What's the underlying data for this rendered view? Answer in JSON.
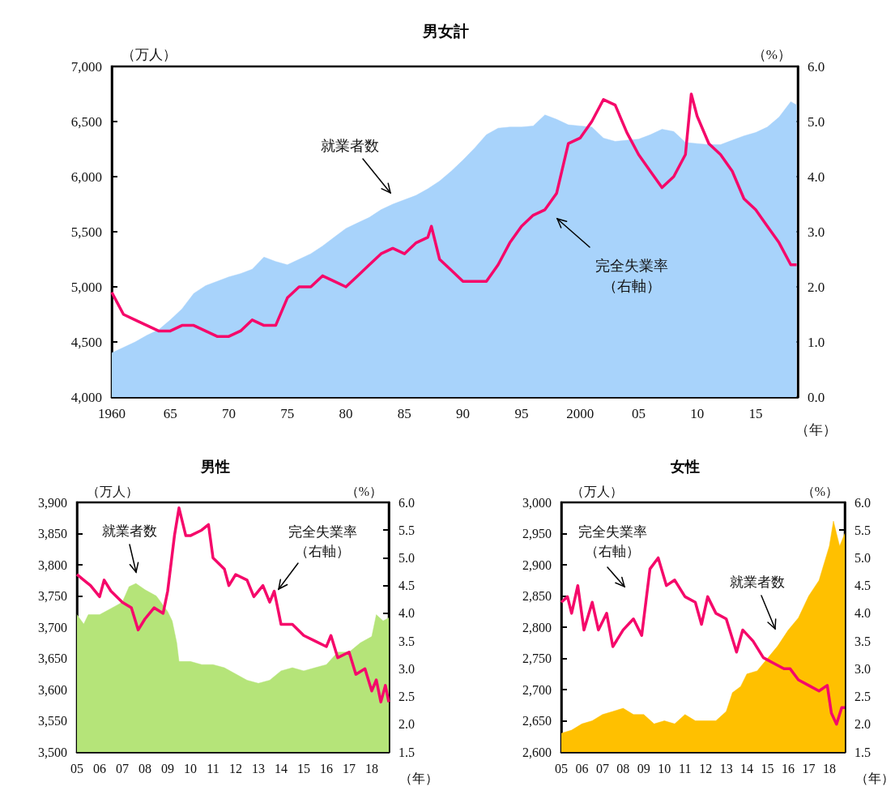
{
  "chart_data": [
    {
      "type": "area",
      "title": "男女計",
      "ylabel": "（万人）",
      "y2label": "（%）",
      "xlabel": "（年）",
      "xlim": [
        1960,
        2018.6
      ],
      "xticks": [
        {
          "value": 1960,
          "label": "1960"
        },
        {
          "value": 1965,
          "label": "65"
        },
        {
          "value": 1970,
          "label": "70"
        },
        {
          "value": 1975,
          "label": "75"
        },
        {
          "value": 1980,
          "label": "80"
        },
        {
          "value": 1985,
          "label": "85"
        },
        {
          "value": 1990,
          "label": "90"
        },
        {
          "value": 1995,
          "label": "95"
        },
        {
          "value": 2000,
          "label": "2000"
        },
        {
          "value": 2005,
          "label": "05"
        },
        {
          "value": 2010,
          "label": "10"
        },
        {
          "value": 2015,
          "label": "15"
        }
      ],
      "ylim": [
        4000,
        7000
      ],
      "yticks": [
        {
          "value": 4000,
          "label": "4,000"
        },
        {
          "value": 4500,
          "label": "4,500"
        },
        {
          "value": 5000,
          "label": "5,000"
        },
        {
          "value": 5500,
          "label": "5,500"
        },
        {
          "value": 6000,
          "label": "6,000"
        },
        {
          "value": 6500,
          "label": "6,500"
        },
        {
          "value": 7000,
          "label": "7,000"
        }
      ],
      "y2lim": [
        0,
        6
      ],
      "y2ticks": [
        {
          "value": 0,
          "label": "0.0"
        },
        {
          "value": 1,
          "label": "1.0"
        },
        {
          "value": 2,
          "label": "2.0"
        },
        {
          "value": 3,
          "label": "3.0"
        },
        {
          "value": 4,
          "label": "4.0"
        },
        {
          "value": 5,
          "label": "5.0"
        },
        {
          "value": 6,
          "label": "6.0"
        }
      ],
      "series": [
        {
          "color": "#a8d3fb",
          "x": [
            1960,
            1961,
            1962,
            1963,
            1964,
            1965,
            1966,
            1967,
            1968,
            1969,
            1970,
            1971,
            1972,
            1973,
            1974,
            1975,
            1976,
            1977,
            1978,
            1979,
            1980,
            1981,
            1982,
            1983,
            1984,
            1985,
            1986,
            1987,
            1988,
            1989,
            1990,
            1991,
            1992,
            1993,
            1994,
            1995,
            1996,
            1997,
            1998,
            1999,
            2000,
            2001,
            2002,
            2003,
            2004,
            2005,
            2006,
            2007,
            2008,
            2009,
            2010,
            2011,
            2012,
            2013,
            2014,
            2015,
            2016,
            2017,
            2018,
            2018.5
          ],
          "values": [
            4400,
            4450,
            4500,
            4560,
            4610,
            4700,
            4800,
            4940,
            5010,
            5050,
            5090,
            5120,
            5160,
            5270,
            5230,
            5200,
            5250,
            5300,
            5370,
            5450,
            5530,
            5580,
            5630,
            5700,
            5750,
            5790,
            5830,
            5890,
            5960,
            6050,
            6150,
            6260,
            6380,
            6440,
            6450,
            6450,
            6460,
            6560,
            6520,
            6470,
            6460,
            6450,
            6350,
            6320,
            6330,
            6340,
            6380,
            6430,
            6410,
            6310,
            6300,
            6290,
            6290,
            6330,
            6370,
            6400,
            6450,
            6540,
            6680,
            6650
          ]
        },
        {
          "type": "line",
          "axis": "y2",
          "color": "#f5086a",
          "x": [
            1960,
            1960.5,
            1961,
            1962,
            1963,
            1964,
            1965,
            1966,
            1967,
            1968,
            1969,
            1970,
            1971,
            1972,
            1973,
            1974,
            1975,
            1976,
            1977,
            1978,
            1979,
            1980,
            1981,
            1982,
            1983,
            1984,
            1985,
            1986,
            1987,
            1987.3,
            1988,
            1989,
            1990,
            1991,
            1992,
            1993,
            1994,
            1995,
            1996,
            1997,
            1998,
            1999,
            2000,
            2001,
            2002,
            2003,
            2004,
            2005,
            2006,
            2007,
            2008,
            2009,
            2009.5,
            2010,
            2011,
            2012,
            2013,
            2014,
            2015,
            2016,
            2017,
            2018,
            2018.5
          ],
          "values": [
            1.9,
            1.7,
            1.5,
            1.4,
            1.3,
            1.2,
            1.2,
            1.3,
            1.3,
            1.2,
            1.1,
            1.1,
            1.2,
            1.4,
            1.3,
            1.3,
            1.8,
            2.0,
            2.0,
            2.2,
            2.1,
            2.0,
            2.2,
            2.4,
            2.6,
            2.7,
            2.6,
            2.8,
            2.9,
            3.1,
            2.5,
            2.3,
            2.1,
            2.1,
            2.1,
            2.4,
            2.8,
            3.1,
            3.3,
            3.4,
            3.7,
            4.6,
            4.7,
            5.0,
            5.4,
            5.3,
            4.8,
            4.4,
            4.1,
            3.8,
            4.0,
            4.4,
            5.5,
            5.1,
            4.6,
            4.4,
            4.1,
            3.6,
            3.4,
            3.1,
            2.8,
            2.4,
            2.4
          ]
        }
      ],
      "annotations": [
        "就業者数",
        "完全失業率（右軸）"
      ]
    },
    {
      "type": "area",
      "title": "男性",
      "ylabel": "（万人）",
      "y2label": "（%）",
      "xlabel": "（年）",
      "xlim": [
        2005,
        2018.75
      ],
      "xticks": [
        {
          "value": 2005,
          "label": "05"
        },
        {
          "value": 2006,
          "label": "06"
        },
        {
          "value": 2007,
          "label": "07"
        },
        {
          "value": 2008,
          "label": "08"
        },
        {
          "value": 2009,
          "label": "09"
        },
        {
          "value": 2010,
          "label": "10"
        },
        {
          "value": 2011,
          "label": "11"
        },
        {
          "value": 2012,
          "label": "12"
        },
        {
          "value": 2013,
          "label": "13"
        },
        {
          "value": 2014,
          "label": "14"
        },
        {
          "value": 2015,
          "label": "15"
        },
        {
          "value": 2016,
          "label": "16"
        },
        {
          "value": 2017,
          "label": "17"
        },
        {
          "value": 2018,
          "label": "18"
        }
      ],
      "ylim": [
        3500,
        3900
      ],
      "yticks": [
        {
          "value": 3500,
          "label": "3,500"
        },
        {
          "value": 3550,
          "label": "3,550"
        },
        {
          "value": 3600,
          "label": "3,600"
        },
        {
          "value": 3650,
          "label": "3,650"
        },
        {
          "value": 3700,
          "label": "3,700"
        },
        {
          "value": 3750,
          "label": "3,750"
        },
        {
          "value": 3800,
          "label": "3,800"
        },
        {
          "value": 3850,
          "label": "3,850"
        },
        {
          "value": 3900,
          "label": "3,900"
        }
      ],
      "y2lim": [
        1.5,
        6
      ],
      "y2ticks": [
        {
          "value": 1.5,
          "label": "1.5"
        },
        {
          "value": 2,
          "label": "2.0"
        },
        {
          "value": 2.5,
          "label": "2.5"
        },
        {
          "value": 3,
          "label": "3.0"
        },
        {
          "value": 3.5,
          "label": "3.5"
        },
        {
          "value": 4,
          "label": "4.0"
        },
        {
          "value": 4.5,
          "label": "4.5"
        },
        {
          "value": 5,
          "label": "5.0"
        },
        {
          "value": 5.5,
          "label": "5.5"
        },
        {
          "value": 6,
          "label": "6.0"
        }
      ],
      "series": [
        {
          "color": "#b5e479",
          "x": [
            2005,
            2005.3,
            2005.5,
            2006,
            2006.5,
            2007,
            2007.3,
            2007.6,
            2008,
            2008.5,
            2009,
            2009.2,
            2009.4,
            2009.5,
            2010,
            2010.5,
            2011,
            2011.5,
            2012,
            2012.5,
            2013,
            2013.5,
            2014,
            2014.5,
            2015,
            2015.5,
            2016,
            2016.5,
            2017,
            2017.5,
            2018,
            2018.2,
            2018.5,
            2018.75
          ],
          "values": [
            3720,
            3705,
            3720,
            3720,
            3730,
            3740,
            3765,
            3770,
            3760,
            3750,
            3725,
            3710,
            3675,
            3645,
            3645,
            3640,
            3640,
            3635,
            3625,
            3615,
            3610,
            3615,
            3630,
            3635,
            3630,
            3635,
            3640,
            3660,
            3660,
            3675,
            3685,
            3720,
            3710,
            3715
          ]
        },
        {
          "type": "line",
          "axis": "y2",
          "color": "#f5086a",
          "x": [
            2005,
            2005.3,
            2005.6,
            2006,
            2006.2,
            2006.5,
            2007,
            2007.4,
            2007.7,
            2008,
            2008.4,
            2008.8,
            2009,
            2009.3,
            2009.5,
            2009.8,
            2010,
            2010.5,
            2010.8,
            2011,
            2011.5,
            2011.7,
            2012,
            2012.5,
            2012.8,
            2013.2,
            2013.5,
            2013.7,
            2014,
            2014.5,
            2015,
            2015.5,
            2016,
            2016.2,
            2016.5,
            2017,
            2017.3,
            2017.7,
            2018,
            2018.2,
            2018.4,
            2018.6,
            2018.75
          ],
          "values": [
            4.7,
            4.6,
            4.5,
            4.3,
            4.6,
            4.4,
            4.2,
            4.1,
            3.7,
            3.9,
            4.1,
            4.0,
            4.4,
            5.4,
            5.9,
            5.4,
            5.4,
            5.5,
            5.6,
            5.0,
            4.8,
            4.5,
            4.7,
            4.6,
            4.3,
            4.5,
            4.2,
            4.4,
            3.8,
            3.8,
            3.6,
            3.5,
            3.4,
            3.6,
            3.2,
            3.3,
            2.9,
            3.0,
            2.6,
            2.8,
            2.4,
            2.7,
            2.4
          ]
        }
      ],
      "annotations": [
        "就業者数",
        "完全失業率（右軸）"
      ]
    },
    {
      "type": "area",
      "title": "女性",
      "ylabel": "（万人）",
      "y2label": "（%）",
      "xlabel": "（年）",
      "xlim": [
        2005,
        2018.75
      ],
      "xticks": [
        {
          "value": 2005,
          "label": "05"
        },
        {
          "value": 2006,
          "label": "06"
        },
        {
          "value": 2007,
          "label": "07"
        },
        {
          "value": 2008,
          "label": "08"
        },
        {
          "value": 2009,
          "label": "09"
        },
        {
          "value": 2010,
          "label": "10"
        },
        {
          "value": 2011,
          "label": "11"
        },
        {
          "value": 2012,
          "label": "12"
        },
        {
          "value": 2013,
          "label": "13"
        },
        {
          "value": 2014,
          "label": "14"
        },
        {
          "value": 2015,
          "label": "15"
        },
        {
          "value": 2016,
          "label": "16"
        },
        {
          "value": 2017,
          "label": "17"
        },
        {
          "value": 2018,
          "label": "18"
        }
      ],
      "ylim": [
        2600,
        3000
      ],
      "yticks": [
        {
          "value": 2600,
          "label": "2,600"
        },
        {
          "value": 2650,
          "label": "2,650"
        },
        {
          "value": 2700,
          "label": "2,700"
        },
        {
          "value": 2750,
          "label": "2,750"
        },
        {
          "value": 2800,
          "label": "2,800"
        },
        {
          "value": 2850,
          "label": "2,850"
        },
        {
          "value": 2900,
          "label": "2,900"
        },
        {
          "value": 2950,
          "label": "2,950"
        },
        {
          "value": 3000,
          "label": "3,000"
        }
      ],
      "y2lim": [
        1.5,
        6
      ],
      "y2ticks": [
        {
          "value": 1.5,
          "label": "1.5"
        },
        {
          "value": 2,
          "label": "2.0"
        },
        {
          "value": 2.5,
          "label": "2.5"
        },
        {
          "value": 3,
          "label": "3.0"
        },
        {
          "value": 3.5,
          "label": "3.5"
        },
        {
          "value": 4,
          "label": "4.0"
        },
        {
          "value": 4.5,
          "label": "4.5"
        },
        {
          "value": 5,
          "label": "5.0"
        },
        {
          "value": 5.5,
          "label": "5.5"
        },
        {
          "value": 6,
          "label": "6.0"
        }
      ],
      "series": [
        {
          "color": "#ffc000",
          "x": [
            2005,
            2005.5,
            2006,
            2006.5,
            2007,
            2007.5,
            2008,
            2008.5,
            2009,
            2009.5,
            2010,
            2010.5,
            2011,
            2011.5,
            2012,
            2012.5,
            2013,
            2013.3,
            2013.7,
            2014,
            2014.5,
            2015,
            2015.5,
            2016,
            2016.5,
            2017,
            2017.5,
            2018,
            2018.2,
            2018.5,
            2018.75
          ],
          "values": [
            2630,
            2635,
            2645,
            2650,
            2660,
            2665,
            2670,
            2660,
            2660,
            2645,
            2650,
            2645,
            2660,
            2650,
            2650,
            2650,
            2665,
            2695,
            2705,
            2725,
            2730,
            2750,
            2770,
            2795,
            2815,
            2850,
            2875,
            2930,
            2970,
            2930,
            2950
          ]
        },
        {
          "type": "line",
          "axis": "y2",
          "color": "#f5086a",
          "x": [
            2005,
            2005.3,
            2005.5,
            2005.8,
            2006.1,
            2006.5,
            2006.8,
            2007.2,
            2007.5,
            2008,
            2008.5,
            2008.9,
            2009.1,
            2009.3,
            2009.7,
            2010.1,
            2010.5,
            2011,
            2011.5,
            2011.8,
            2012.1,
            2012.5,
            2013,
            2013.5,
            2013.8,
            2014.3,
            2014.8,
            2015.3,
            2015.8,
            2016.1,
            2016.5,
            2017,
            2017.5,
            2017.9,
            2018.1,
            2018.35,
            2018.6,
            2018.75
          ],
          "values": [
            4.2,
            4.3,
            4.0,
            4.5,
            3.7,
            4.2,
            3.7,
            4.0,
            3.4,
            3.7,
            3.9,
            3.6,
            4.2,
            4.8,
            5.0,
            4.5,
            4.6,
            4.3,
            4.2,
            3.8,
            4.3,
            4.0,
            3.9,
            3.3,
            3.7,
            3.5,
            3.2,
            3.1,
            3.0,
            3.0,
            2.8,
            2.7,
            2.6,
            2.7,
            2.2,
            2.0,
            2.3,
            2.3
          ]
        }
      ],
      "annotations": [
        "完全失業率（右軸）",
        "就業者数"
      ]
    }
  ]
}
